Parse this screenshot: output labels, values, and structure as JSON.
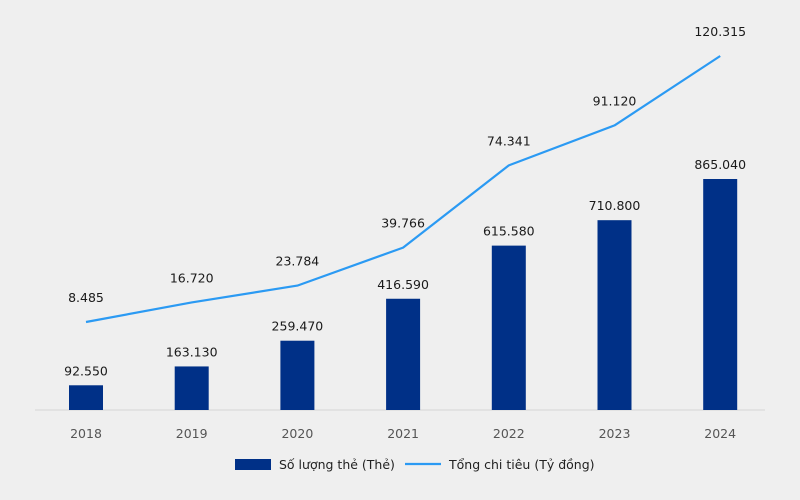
{
  "chart_data": {
    "type": "bar",
    "categories": [
      "2018",
      "2019",
      "2020",
      "2021",
      "2022",
      "2023",
      "2024"
    ],
    "series": [
      {
        "name": "Số lượng thẻ (Thẻ)",
        "type": "bar",
        "color": "#003087",
        "values": [
          92550,
          163130,
          259470,
          416590,
          615580,
          710800,
          865040
        ],
        "labels": [
          "92.550",
          "163.130",
          "259.470",
          "416.590",
          "615.580",
          "710.800",
          "865.040"
        ]
      },
      {
        "name": "Tổng chi tiêu (Tỷ đồng)",
        "type": "line",
        "color": "#2b9af3",
        "values": [
          8485,
          16720,
          23784,
          39766,
          74341,
          91120,
          120315
        ],
        "labels": [
          "8.485",
          "16.720",
          "23.784",
          "39.766",
          "74.341",
          "91.120",
          "120.315"
        ]
      }
    ],
    "bar_axis_range": [
      0,
      865040
    ],
    "line_axis_range": [
      0,
      120315
    ],
    "grid": false,
    "legend_position": "bottom-center"
  }
}
